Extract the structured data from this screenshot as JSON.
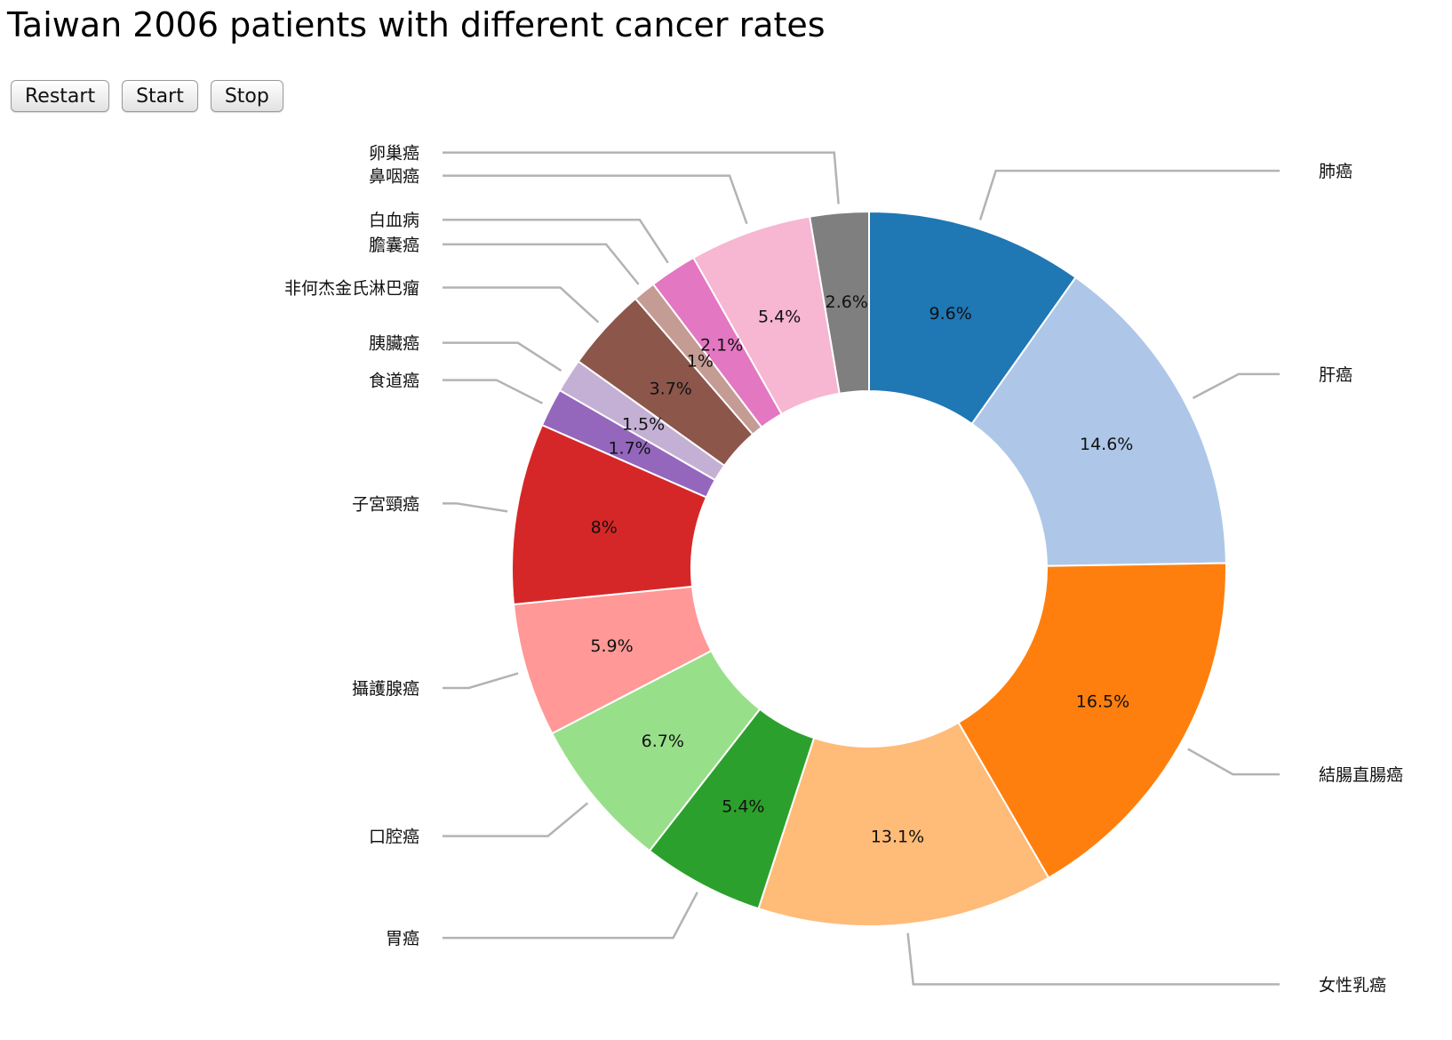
{
  "header": {
    "title": "Taiwan 2006 patients with different cancer rates"
  },
  "controls": {
    "restart_label": "Restart",
    "start_label": "Start",
    "stop_label": "Stop"
  },
  "chart_data": {
    "type": "pie",
    "title": "Taiwan 2006 patients with different cancer rates",
    "donut": true,
    "slices": [
      {
        "label": "肺癌",
        "percent_label": "9.6%",
        "value": 9.6,
        "color": "#1f77b4"
      },
      {
        "label": "肝癌",
        "percent_label": "14.6%",
        "value": 14.6,
        "color": "#aec7e8"
      },
      {
        "label": "結腸直腸癌",
        "percent_label": "16.5%",
        "value": 16.5,
        "color": "#ff7f0e"
      },
      {
        "label": "女性乳癌",
        "percent_label": "13.1%",
        "value": 13.1,
        "color": "#ffbb78"
      },
      {
        "label": "胃癌",
        "percent_label": "5.4%",
        "value": 5.4,
        "color": "#2ca02c"
      },
      {
        "label": "口腔癌",
        "percent_label": "6.7%",
        "value": 6.7,
        "color": "#98df8a"
      },
      {
        "label": "攝護腺癌",
        "percent_label": "5.9%",
        "value": 5.9,
        "color": "#ff9896"
      },
      {
        "label": "子宮頸癌",
        "percent_label": "8%",
        "value": 8.0,
        "color": "#d62728"
      },
      {
        "label": "食道癌",
        "percent_label": "1.7%",
        "value": 1.7,
        "color": "#9467bd"
      },
      {
        "label": "胰臟癌",
        "percent_label": "1.5%",
        "value": 1.5,
        "color": "#c5b0d5"
      },
      {
        "label": "非何杰金氏淋巴瘤",
        "percent_label": "3.7%",
        "value": 3.7,
        "color": "#8c564b"
      },
      {
        "label": "膽囊癌",
        "percent_label": "1%",
        "value": 1.0,
        "color": "#c49c94"
      },
      {
        "label": "白血病",
        "percent_label": "2.1%",
        "value": 2.1,
        "color": "#e377c2"
      },
      {
        "label": "鼻咽癌",
        "percent_label": "5.4%",
        "value": 5.4,
        "color": "#f7b6d2"
      },
      {
        "label": "卵巢癌",
        "percent_label": "2.6%",
        "value": 2.6,
        "color": "#7f7f7f"
      }
    ]
  }
}
